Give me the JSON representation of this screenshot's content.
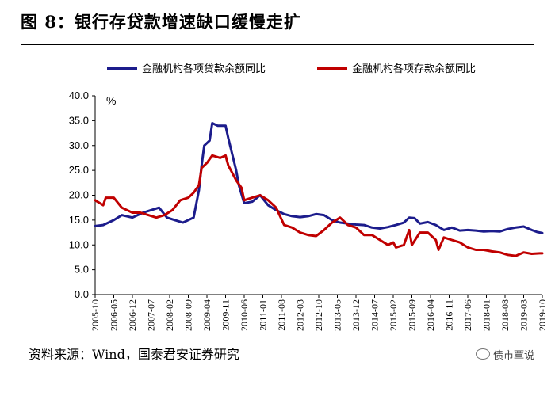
{
  "header": {
    "title": "图 8：银行存贷款增速缺口缓慢走扩"
  },
  "source": "资料来源：Wind，国泰君安证券研究",
  "watermark": {
    "text": "债市覃说",
    "icon": "wechat-icon"
  },
  "chart_data": {
    "type": "line",
    "unit_label": "%",
    "ylim": [
      0,
      40
    ],
    "y_ticks": [
      "0.0",
      "5.0",
      "10.0",
      "15.0",
      "20.0",
      "25.0",
      "30.0",
      "35.0",
      "40.0"
    ],
    "x_ticks": [
      "2005-10",
      "2006-05",
      "2006-12",
      "2007-07",
      "2008-02",
      "2008-09",
      "2009-04",
      "2009-11",
      "2010-06",
      "2011-01",
      "2011-08",
      "2012-03",
      "2012-10",
      "2013-05",
      "2013-12",
      "2014-07",
      "2015-02",
      "2015-09",
      "2016-04",
      "2016-11",
      "2017-06",
      "2018-01",
      "2018-08",
      "2019-03",
      "2019-10"
    ],
    "legend_position": "top",
    "grid": false,
    "series": [
      {
        "name": "金融机构各项贷款余额同比",
        "color": "#1c1c8c",
        "points": [
          [
            "2005-10",
            13.8
          ],
          [
            "2006-01",
            14.0
          ],
          [
            "2006-05",
            15.0
          ],
          [
            "2006-08",
            16.0
          ],
          [
            "2006-12",
            15.5
          ],
          [
            "2007-04",
            16.5
          ],
          [
            "2007-07",
            17.0
          ],
          [
            "2007-10",
            17.5
          ],
          [
            "2008-01",
            15.5
          ],
          [
            "2008-04",
            15.0
          ],
          [
            "2008-07",
            14.5
          ],
          [
            "2008-11",
            15.5
          ],
          [
            "2009-01",
            21.0
          ],
          [
            "2009-02",
            26.0
          ],
          [
            "2009-03",
            30.0
          ],
          [
            "2009-05",
            31.0
          ],
          [
            "2009-06",
            34.5
          ],
          [
            "2009-08",
            34.0
          ],
          [
            "2009-11",
            34.0
          ],
          [
            "2009-12",
            31.5
          ],
          [
            "2010-03",
            25.0
          ],
          [
            "2010-04",
            22.0
          ],
          [
            "2010-06",
            18.4
          ],
          [
            "2010-09",
            18.7
          ],
          [
            "2010-12",
            20.0
          ],
          [
            "2011-03",
            18.0
          ],
          [
            "2011-06",
            17.0
          ],
          [
            "2011-09",
            16.2
          ],
          [
            "2011-12",
            15.8
          ],
          [
            "2012-03",
            15.6
          ],
          [
            "2012-06",
            15.8
          ],
          [
            "2012-09",
            16.2
          ],
          [
            "2012-12",
            16.0
          ],
          [
            "2013-03",
            15.0
          ],
          [
            "2013-06",
            14.5
          ],
          [
            "2013-09",
            14.3
          ],
          [
            "2013-12",
            14.1
          ],
          [
            "2014-03",
            14.0
          ],
          [
            "2014-06",
            13.5
          ],
          [
            "2014-09",
            13.3
          ],
          [
            "2014-12",
            13.6
          ],
          [
            "2015-03",
            14.0
          ],
          [
            "2015-06",
            14.5
          ],
          [
            "2015-08",
            15.5
          ],
          [
            "2015-10",
            15.4
          ],
          [
            "2015-12",
            14.3
          ],
          [
            "2016-03",
            14.6
          ],
          [
            "2016-06",
            14.0
          ],
          [
            "2016-09",
            13.0
          ],
          [
            "2016-12",
            13.5
          ],
          [
            "2017-03",
            12.9
          ],
          [
            "2017-06",
            13.0
          ],
          [
            "2017-09",
            12.9
          ],
          [
            "2017-12",
            12.7
          ],
          [
            "2018-03",
            12.8
          ],
          [
            "2018-06",
            12.7
          ],
          [
            "2018-09",
            13.2
          ],
          [
            "2018-12",
            13.5
          ],
          [
            "2019-03",
            13.7
          ],
          [
            "2019-06",
            13.0
          ],
          [
            "2019-08",
            12.6
          ],
          [
            "2019-10",
            12.4
          ]
        ]
      },
      {
        "name": "金融机构各项存款余额同比",
        "color": "#c00000",
        "points": [
          [
            "2005-10",
            19.0
          ],
          [
            "2006-01",
            18.0
          ],
          [
            "2006-02",
            19.5
          ],
          [
            "2006-05",
            19.5
          ],
          [
            "2006-08",
            17.5
          ],
          [
            "2006-12",
            16.5
          ],
          [
            "2007-03",
            16.5
          ],
          [
            "2007-06",
            16.0
          ],
          [
            "2007-09",
            15.5
          ],
          [
            "2007-12",
            16.0
          ],
          [
            "2008-03",
            17.0
          ],
          [
            "2008-06",
            19.0
          ],
          [
            "2008-09",
            19.5
          ],
          [
            "2008-11",
            20.5
          ],
          [
            "2009-01",
            22.0
          ],
          [
            "2009-02",
            25.5
          ],
          [
            "2009-04",
            26.5
          ],
          [
            "2009-06",
            28.0
          ],
          [
            "2009-09",
            27.5
          ],
          [
            "2009-11",
            28.0
          ],
          [
            "2009-12",
            26.0
          ],
          [
            "2010-03",
            23.0
          ],
          [
            "2010-05",
            21.5
          ],
          [
            "2010-06",
            19.0
          ],
          [
            "2010-09",
            19.5
          ],
          [
            "2010-12",
            20.0
          ],
          [
            "2011-03",
            19.0
          ],
          [
            "2011-06",
            17.5
          ],
          [
            "2011-09",
            14.0
          ],
          [
            "2011-12",
            13.5
          ],
          [
            "2012-03",
            12.5
          ],
          [
            "2012-06",
            12.0
          ],
          [
            "2012-09",
            11.8
          ],
          [
            "2012-12",
            13.0
          ],
          [
            "2013-03",
            14.5
          ],
          [
            "2013-06",
            15.5
          ],
          [
            "2013-09",
            14.0
          ],
          [
            "2013-12",
            13.5
          ],
          [
            "2014-03",
            12.0
          ],
          [
            "2014-06",
            12.0
          ],
          [
            "2014-09",
            11.0
          ],
          [
            "2014-12",
            10.0
          ],
          [
            "2015-02",
            10.5
          ],
          [
            "2015-03",
            9.5
          ],
          [
            "2015-06",
            10.0
          ],
          [
            "2015-08",
            13.0
          ],
          [
            "2015-09",
            10.0
          ],
          [
            "2015-12",
            12.5
          ],
          [
            "2016-03",
            12.5
          ],
          [
            "2016-06",
            11.0
          ],
          [
            "2016-07",
            9.0
          ],
          [
            "2016-09",
            11.5
          ],
          [
            "2016-12",
            11.0
          ],
          [
            "2017-03",
            10.5
          ],
          [
            "2017-06",
            9.5
          ],
          [
            "2017-09",
            9.0
          ],
          [
            "2017-12",
            9.0
          ],
          [
            "2018-03",
            8.7
          ],
          [
            "2018-06",
            8.5
          ],
          [
            "2018-09",
            8.0
          ],
          [
            "2018-12",
            7.8
          ],
          [
            "2019-03",
            8.5
          ],
          [
            "2019-06",
            8.2
          ],
          [
            "2019-09",
            8.3
          ],
          [
            "2019-10",
            8.3
          ]
        ]
      }
    ]
  }
}
